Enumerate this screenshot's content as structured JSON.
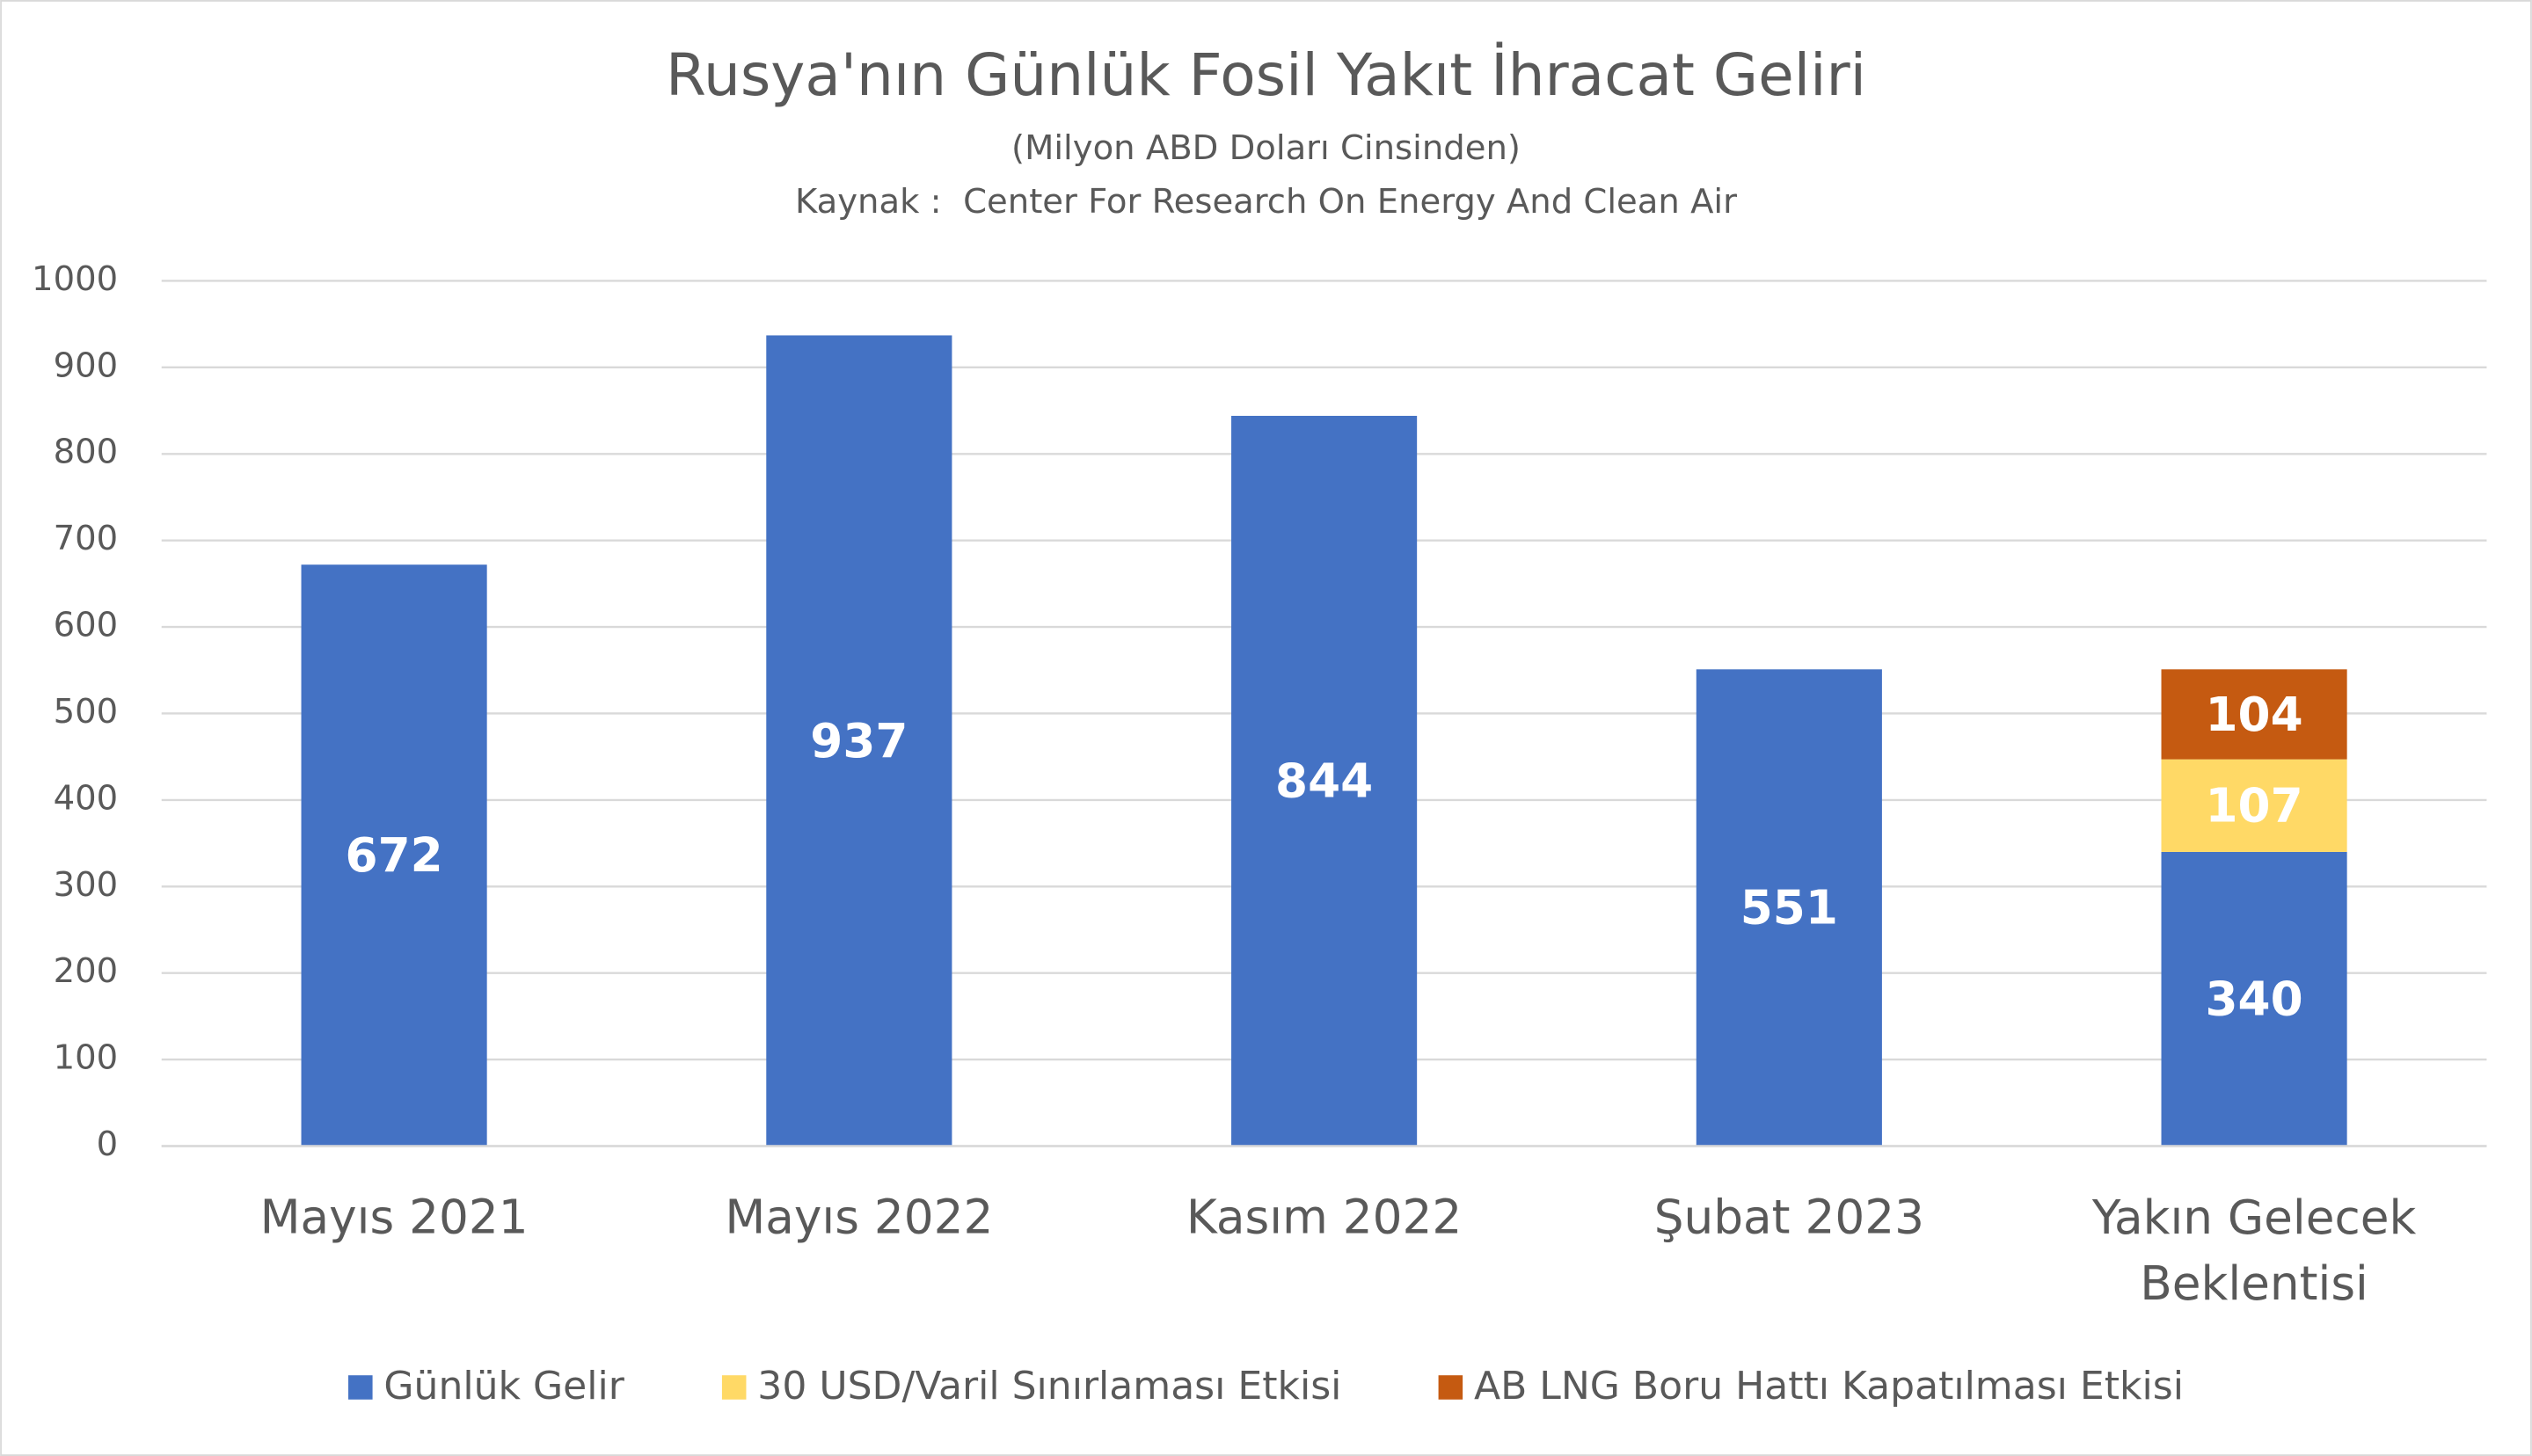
{
  "chart_data": {
    "type": "stacked-bar",
    "title": "Rusya'nın Günlük Fosil Yakıt İhracat Geliri",
    "subtitle": "(Milyon ABD Doları Cinsinden)",
    "source": "Kaynak :  Center For Research On Energy And Clean Air",
    "categories": [
      "Mayıs 2021",
      "Mayıs 2022",
      "Kasım 2022",
      "Şubat 2023",
      "Yakın Gelecek Beklentisi"
    ],
    "series": [
      {
        "name": "Günlük Gelir",
        "color": "#4472c4",
        "values": [
          672,
          937,
          844,
          551,
          340
        ]
      },
      {
        "name": "30 USD/Varil Sınırlaması Etkisi",
        "color": "#ffd966",
        "values": [
          null,
          null,
          null,
          null,
          107
        ]
      },
      {
        "name": "AB LNG Boru Hattı Kapatılması Etkisi",
        "color": "#c55a11",
        "values": [
          null,
          null,
          null,
          null,
          104
        ]
      }
    ],
    "ylim": [
      0,
      1000
    ],
    "yticks": [
      0,
      100,
      200,
      300,
      400,
      500,
      600,
      700,
      800,
      900,
      1000
    ],
    "grid": true,
    "legend": "bottom"
  }
}
